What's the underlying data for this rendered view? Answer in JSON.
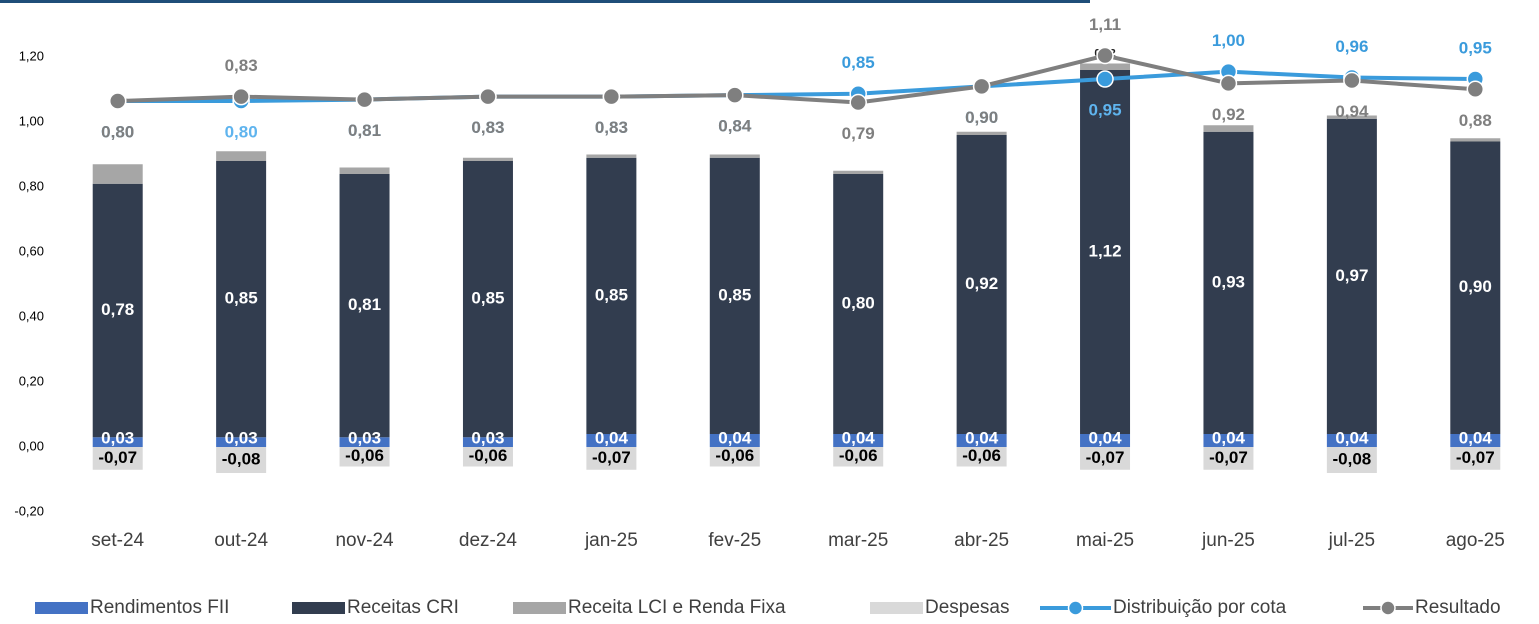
{
  "chart_data": {
    "type": "bar",
    "stacked": true,
    "categories": [
      "set-24",
      "out-24",
      "nov-24",
      "dez-24",
      "jan-25",
      "fev-25",
      "mar-25",
      "abr-25",
      "mai-25",
      "jun-25",
      "jul-25",
      "ago-25"
    ],
    "ylim": [
      -0.2,
      1.2
    ],
    "yticks": [
      {
        "value": -0.2,
        "label": "-0,20"
      },
      {
        "value": 0,
        "label": "0,00"
      },
      {
        "value": 0.2,
        "label": "0,20"
      },
      {
        "value": 0.4,
        "label": "0,40"
      },
      {
        "value": 0.6,
        "label": "0,60"
      },
      {
        "value": 0.8,
        "label": "0,80"
      },
      {
        "value": 1.0,
        "label": "1,00"
      },
      {
        "value": 1.2,
        "label": "1,20"
      }
    ],
    "y2lim": [
      -2.0,
      1.1
    ],
    "grid": false,
    "legend": "bottom",
    "series": [
      {
        "name": "Rendimentos FII",
        "type": "bar",
        "color": "#4472c4",
        "values": [
          0.03,
          0.03,
          0.03,
          0.03,
          0.04,
          0.04,
          0.04,
          0.04,
          0.04,
          0.04,
          0.04,
          0.04
        ],
        "value_labels": [
          "0,03",
          "0,03",
          "0,03",
          "0,03",
          "0,04",
          "0,04",
          "0,04",
          "0,04",
          "0,04",
          "0,04",
          "0,04",
          "0,04"
        ]
      },
      {
        "name": "Receitas CRI",
        "type": "bar",
        "color": "#323d4f",
        "values": [
          0.78,
          0.85,
          0.81,
          0.85,
          0.85,
          0.85,
          0.8,
          0.92,
          1.12,
          0.93,
          0.97,
          0.9
        ],
        "value_labels": [
          "0,78",
          "0,85",
          "0,81",
          "0,85",
          "0,85",
          "0,85",
          "0,80",
          "0,92",
          "1,12",
          "0,93",
          "0,97",
          "0,90"
        ]
      },
      {
        "name": "Receita LCI e Renda Fixa",
        "type": "bar",
        "color": "#a6a6a6",
        "values": [
          0.06,
          0.03,
          0.02,
          0.01,
          0.01,
          0.01,
          0.01,
          0.01,
          0.02,
          0.02,
          0.01,
          0.01
        ],
        "value_labels": [
          null,
          null,
          null,
          null,
          null,
          null,
          null,
          null,
          "0,02",
          null,
          null,
          null
        ]
      },
      {
        "name": "Despesas",
        "type": "bar",
        "color": "#d9d9d9",
        "values": [
          -0.07,
          -0.08,
          -0.06,
          -0.06,
          -0.07,
          -0.06,
          -0.06,
          -0.06,
          -0.07,
          -0.07,
          -0.08,
          -0.07
        ],
        "value_labels": [
          "-0,07",
          "-0,08",
          "-0,06",
          "-0,06",
          "-0,07",
          "-0,06",
          "-0,06",
          "-0,06",
          "-0,07",
          "-0,07",
          "-0,08",
          "-0,07"
        ]
      },
      {
        "name": "Distribuição por cota",
        "type": "line",
        "axis": "y2",
        "color": "#3a9bdc",
        "values": [
          0.8,
          0.8,
          0.81,
          0.83,
          0.83,
          0.84,
          0.85,
          0.9,
          0.95,
          1.0,
          0.96,
          0.95
        ],
        "value_labels": [
          "0,80",
          "0,80",
          "0,81",
          "0,83",
          "0,83",
          "0,84",
          "0,85",
          "0,90",
          "0,95",
          "1,00",
          "0,96",
          "0,95"
        ]
      },
      {
        "name": "Resultado",
        "type": "line",
        "axis": "y2",
        "color": "#7f7f7f",
        "values": [
          0.8,
          0.83,
          0.81,
          0.83,
          0.83,
          0.84,
          0.79,
          0.9,
          1.11,
          0.92,
          0.94,
          0.88
        ],
        "value_labels": [
          "0,80",
          "0,83",
          "0,81",
          "0,83",
          "0,83",
          "0,84",
          "0,79",
          "0,90",
          "1,11",
          "0,92",
          "0,94",
          "0,88"
        ]
      }
    ]
  }
}
